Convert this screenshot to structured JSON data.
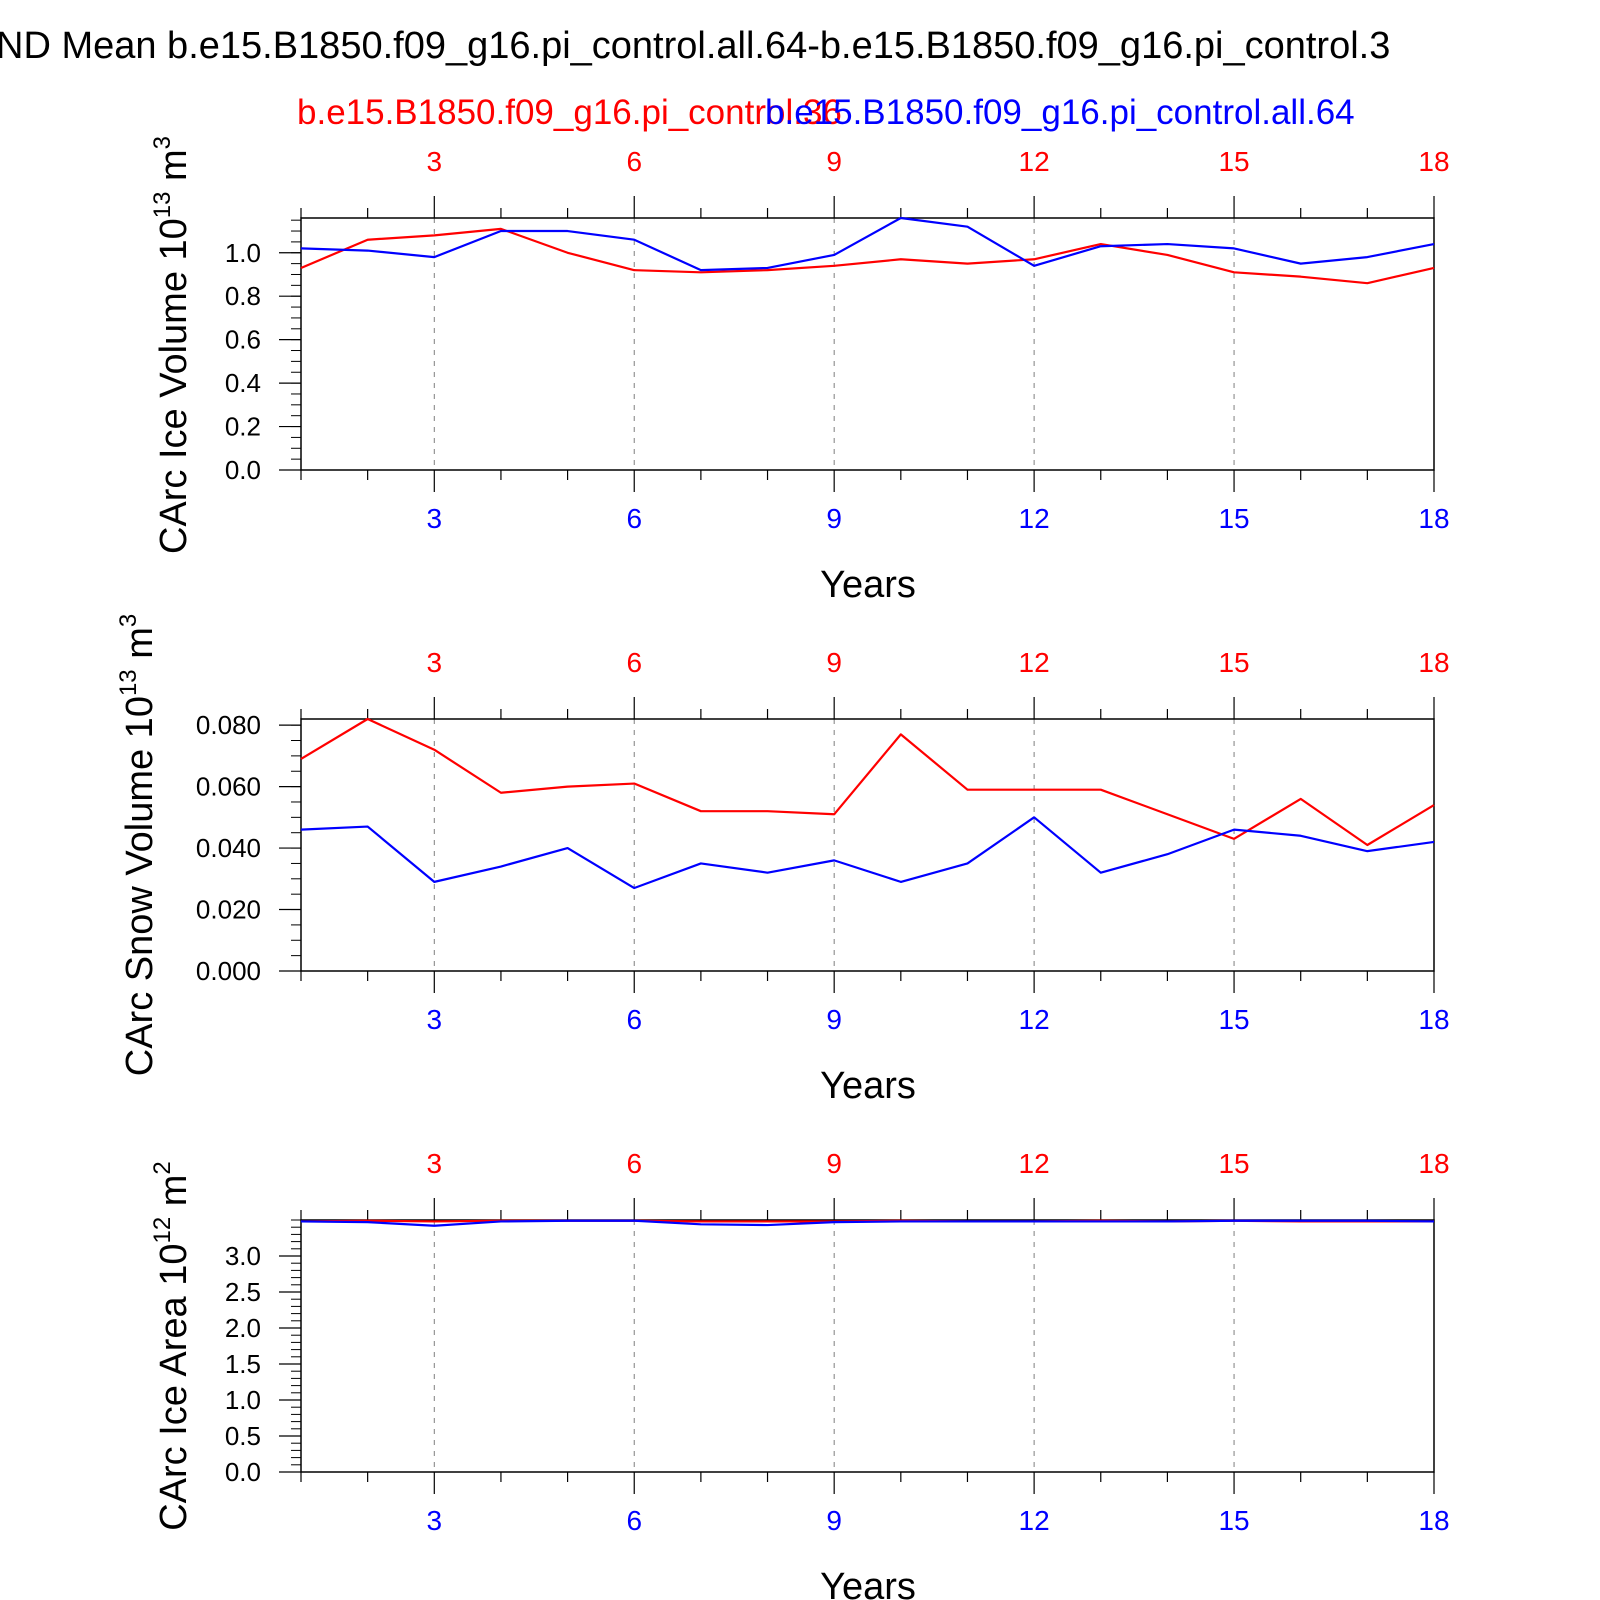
{
  "figure": {
    "title": "ND Mean b.e15.B1850.f09_g16.pi_control.all.64-b.e15.B1850.f09_g16.pi_control.3",
    "legend_red": "b.e15.B1850.f09_g16.pi_control.36",
    "legend_blue": "b.e15.B1850.f09_g16.pi_control.all.64",
    "colors": {
      "red": "#ff0000",
      "blue": "#0000ff",
      "axis": "#000000",
      "grid": "#7f7f7f"
    }
  },
  "chart_data": [
    {
      "type": "line",
      "ylabel": "CArc Ice Volume 10",
      "yunit_exp": "13",
      "yunit_suffix": " m",
      "yunit_power": "3",
      "xlabel": "Years",
      "xlim": [
        1,
        18
      ],
      "ylim": [
        0,
        1.16
      ],
      "yticks": [
        "0.0",
        "0.2",
        "0.4",
        "0.6",
        "0.8",
        "1.0"
      ],
      "xticks": [
        "3",
        "6",
        "9",
        "12",
        "15",
        "18"
      ],
      "grid": "vertical dashed at major x ticks",
      "x": [
        1,
        2,
        3,
        4,
        5,
        6,
        7,
        8,
        9,
        10,
        11,
        12,
        13,
        14,
        15,
        16,
        17,
        18
      ],
      "series": [
        {
          "color": "red",
          "values": [
            0.93,
            1.06,
            1.08,
            1.11,
            1.0,
            0.92,
            0.91,
            0.92,
            0.94,
            0.97,
            0.95,
            0.97,
            1.04,
            0.99,
            0.91,
            0.89,
            0.86,
            0.93
          ]
        },
        {
          "color": "blue",
          "values": [
            1.02,
            1.01,
            0.98,
            1.1,
            1.1,
            1.06,
            0.92,
            0.93,
            0.99,
            1.16,
            1.12,
            0.94,
            1.03,
            1.04,
            1.02,
            0.95,
            0.98,
            1.04
          ]
        }
      ]
    },
    {
      "type": "line",
      "ylabel": "CArc Snow Volume 10",
      "yunit_exp": "13",
      "yunit_suffix": " m",
      "yunit_power": "3",
      "xlabel": "Years",
      "xlim": [
        1,
        18
      ],
      "ylim": [
        0,
        0.082
      ],
      "yticks": [
        "0.000",
        "0.020",
        "0.040",
        "0.060",
        "0.080"
      ],
      "xticks": [
        "3",
        "6",
        "9",
        "12",
        "15",
        "18"
      ],
      "grid": "vertical dashed at major x ticks",
      "x": [
        1,
        2,
        3,
        4,
        5,
        6,
        7,
        8,
        9,
        10,
        11,
        12,
        13,
        14,
        15,
        16,
        17,
        18
      ],
      "series": [
        {
          "color": "red",
          "values": [
            0.069,
            0.082,
            0.072,
            0.058,
            0.06,
            0.061,
            0.052,
            0.052,
            0.051,
            0.077,
            0.059,
            0.059,
            0.059,
            0.051,
            0.043,
            0.056,
            0.041,
            0.054
          ]
        },
        {
          "color": "blue",
          "values": [
            0.046,
            0.047,
            0.029,
            0.034,
            0.04,
            0.027,
            0.035,
            0.032,
            0.036,
            0.029,
            0.035,
            0.05,
            0.032,
            0.038,
            0.046,
            0.044,
            0.039,
            0.042
          ]
        }
      ]
    },
    {
      "type": "line",
      "ylabel": "CArc Ice Area 10",
      "yunit_exp": "12",
      "yunit_suffix": " m",
      "yunit_power": "2",
      "xlabel": "Years",
      "xlim": [
        1,
        18
      ],
      "ylim": [
        0,
        3.5
      ],
      "yticks": [
        "0.0",
        "0.5",
        "1.0",
        "1.5",
        "2.0",
        "2.5",
        "3.0"
      ],
      "xticks": [
        "3",
        "6",
        "9",
        "12",
        "15",
        "18"
      ],
      "grid": "vertical dashed at major x ticks",
      "x": [
        1,
        2,
        3,
        4,
        5,
        6,
        7,
        8,
        9,
        10,
        11,
        12,
        13,
        14,
        15,
        16,
        17,
        18
      ],
      "series": [
        {
          "color": "red",
          "values": [
            3.48,
            3.49,
            3.48,
            3.49,
            3.49,
            3.49,
            3.48,
            3.48,
            3.48,
            3.49,
            3.48,
            3.48,
            3.49,
            3.48,
            3.49,
            3.48,
            3.48,
            3.48
          ]
        },
        {
          "color": "blue",
          "values": [
            3.48,
            3.47,
            3.42,
            3.48,
            3.49,
            3.49,
            3.44,
            3.43,
            3.47,
            3.48,
            3.48,
            3.48,
            3.48,
            3.48,
            3.49,
            3.49,
            3.49,
            3.48
          ]
        }
      ]
    }
  ]
}
